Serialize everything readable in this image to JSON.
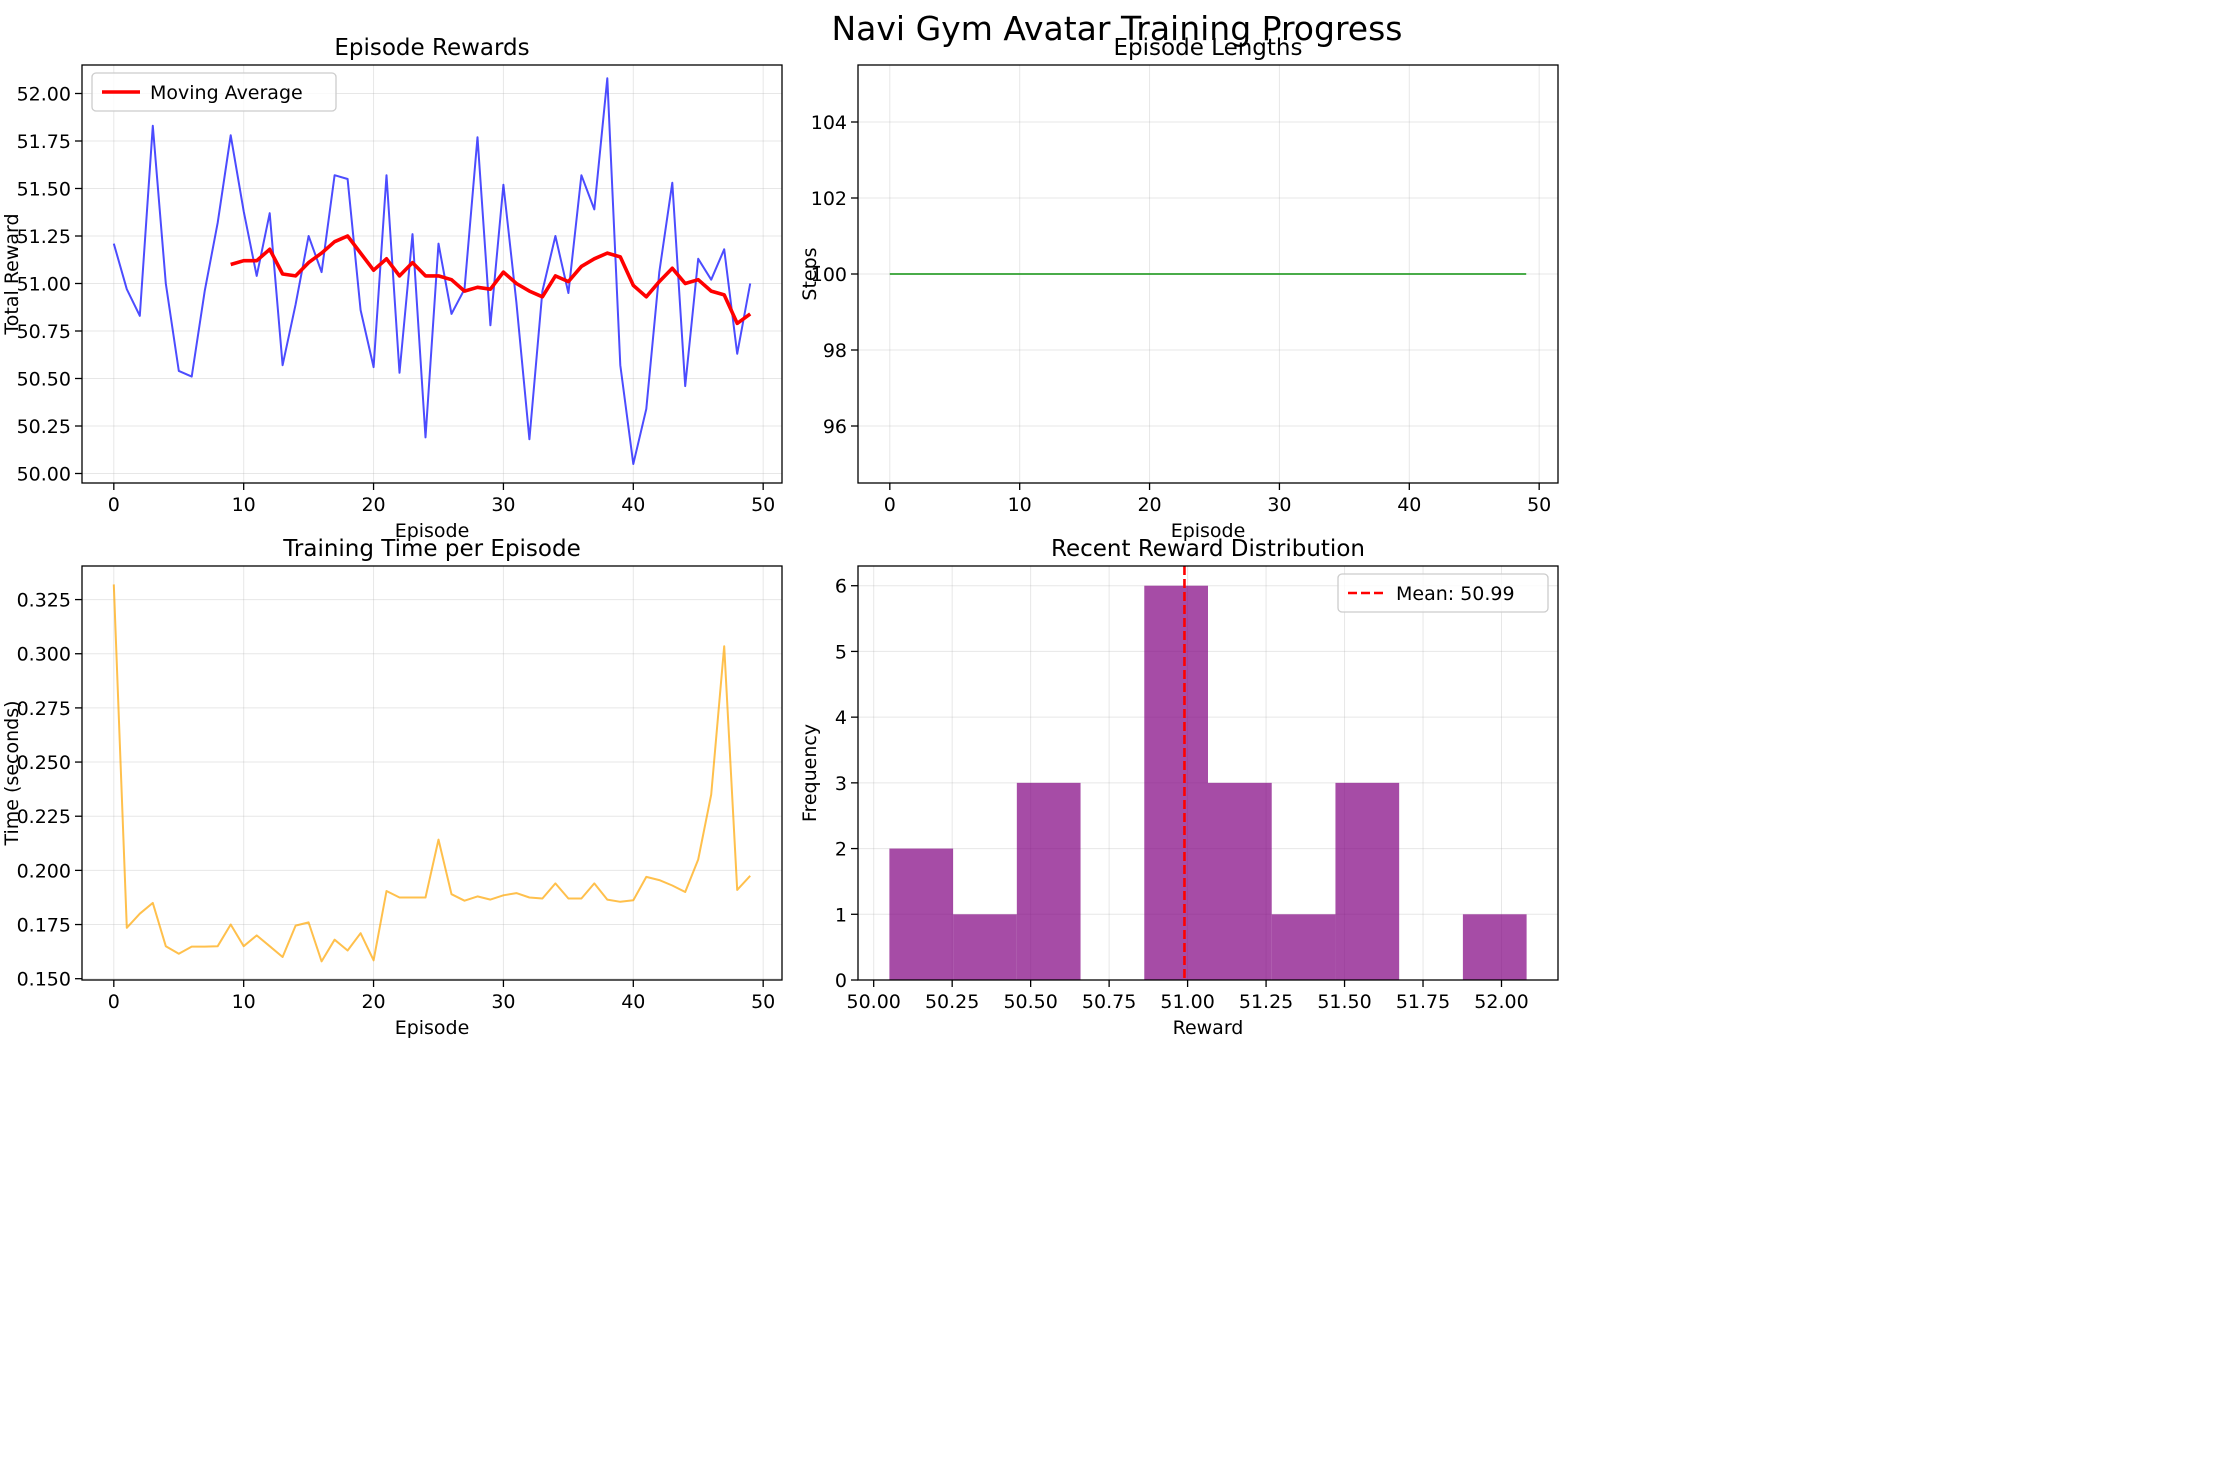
{
  "suptitle": "Navi Gym Avatar Training Progress",
  "chart_data": [
    {
      "type": "line",
      "title": "Episode Rewards",
      "xlabel": "Episode",
      "ylabel": "Total Reward",
      "xlim": [
        -2.45,
        51.45
      ],
      "ylim": [
        49.95,
        52.15
      ],
      "xticks": [
        0,
        10,
        20,
        30,
        40,
        50
      ],
      "yticks": [
        50.0,
        50.25,
        50.5,
        50.75,
        51.0,
        51.25,
        51.5,
        51.75,
        52.0
      ],
      "grid": true,
      "legend": "upper-left",
      "series": [
        {
          "color": "#0000ff",
          "x": [
            0,
            1,
            2,
            3,
            4,
            5,
            6,
            7,
            8,
            9,
            10,
            11,
            12,
            13,
            14,
            15,
            16,
            17,
            18,
            19,
            20,
            21,
            22,
            23,
            24,
            25,
            26,
            27,
            28,
            29,
            30,
            31,
            32,
            33,
            34,
            35,
            36,
            37,
            38,
            39,
            40,
            41,
            42,
            43,
            44,
            45,
            46,
            47,
            48,
            49
          ],
          "y": [
            51.21,
            50.97,
            50.83,
            51.83,
            51.0,
            50.54,
            50.51,
            50.96,
            51.32,
            51.78,
            51.38,
            51.04,
            51.37,
            50.57,
            50.89,
            51.25,
            51.06,
            51.57,
            51.55,
            50.86,
            50.56,
            51.57,
            50.53,
            51.26,
            50.19,
            51.21,
            50.84,
            50.97,
            51.77,
            50.78,
            51.52,
            50.9,
            50.18,
            50.96,
            51.25,
            50.95,
            51.57,
            51.39,
            52.08,
            50.57,
            50.05,
            50.34,
            51.06,
            51.53,
            50.46,
            51.13,
            51.02,
            51.18,
            50.63,
            51.0
          ]
        },
        {
          "name": "Moving Average",
          "color": "#ff0000",
          "x": [
            9,
            10,
            11,
            12,
            13,
            14,
            15,
            16,
            17,
            18,
            19,
            20,
            21,
            22,
            23,
            24,
            25,
            26,
            27,
            28,
            29,
            30,
            31,
            32,
            33,
            34,
            35,
            36,
            37,
            38,
            39,
            40,
            41,
            42,
            43,
            44,
            45,
            46,
            47,
            48,
            49
          ],
          "y": [
            51.1,
            51.12,
            51.12,
            51.18,
            51.05,
            51.04,
            51.11,
            51.16,
            51.22,
            51.25,
            51.16,
            51.07,
            51.13,
            51.04,
            51.11,
            51.04,
            51.04,
            51.02,
            50.96,
            50.98,
            50.97,
            51.06,
            51.0,
            50.96,
            50.93,
            51.04,
            51.01,
            51.09,
            51.13,
            51.16,
            51.14,
            50.99,
            50.93,
            51.01,
            51.08,
            51.0,
            51.02,
            50.96,
            50.94,
            50.79,
            50.84
          ]
        }
      ]
    },
    {
      "type": "line",
      "title": "Episode Lengths",
      "xlabel": "Episode",
      "ylabel": "Steps",
      "xlim": [
        -2.45,
        51.45
      ],
      "ylim": [
        94.5,
        105.5
      ],
      "xticks": [
        0,
        10,
        20,
        30,
        40,
        50
      ],
      "yticks": [
        96,
        98,
        100,
        102,
        104
      ],
      "grid": true,
      "series": [
        {
          "color": "#2ca02c",
          "x": [
            0,
            1,
            2,
            3,
            4,
            5,
            6,
            7,
            8,
            9,
            10,
            11,
            12,
            13,
            14,
            15,
            16,
            17,
            18,
            19,
            20,
            21,
            22,
            23,
            24,
            25,
            26,
            27,
            28,
            29,
            30,
            31,
            32,
            33,
            34,
            35,
            36,
            37,
            38,
            39,
            40,
            41,
            42,
            43,
            44,
            45,
            46,
            47,
            48,
            49
          ],
          "y": [
            100,
            100,
            100,
            100,
            100,
            100,
            100,
            100,
            100,
            100,
            100,
            100,
            100,
            100,
            100,
            100,
            100,
            100,
            100,
            100,
            100,
            100,
            100,
            100,
            100,
            100,
            100,
            100,
            100,
            100,
            100,
            100,
            100,
            100,
            100,
            100,
            100,
            100,
            100,
            100,
            100,
            100,
            100,
            100,
            100,
            100,
            100,
            100,
            100,
            100
          ]
        }
      ]
    },
    {
      "type": "line",
      "title": "Training Time per Episode",
      "xlabel": "Episode",
      "ylabel": "Time (seconds)",
      "xlim": [
        -2.45,
        51.45
      ],
      "ylim": [
        0.1494,
        0.3405
      ],
      "xticks": [
        0,
        10,
        20,
        30,
        40,
        50
      ],
      "yticks": [
        0.15,
        0.175,
        0.2,
        0.225,
        0.25,
        0.275,
        0.3,
        0.325
      ],
      "grid": true,
      "series": [
        {
          "color": "#ffa500",
          "x": [
            0,
            1,
            2,
            3,
            4,
            5,
            6,
            7,
            8,
            9,
            10,
            11,
            12,
            13,
            14,
            15,
            16,
            17,
            18,
            19,
            20,
            21,
            22,
            23,
            24,
            25,
            26,
            27,
            28,
            29,
            30,
            31,
            32,
            33,
            34,
            35,
            36,
            37,
            38,
            39,
            40,
            41,
            42,
            43,
            44,
            45,
            46,
            47,
            48,
            49
          ],
          "y": [
            0.332,
            0.1735,
            0.18,
            0.185,
            0.165,
            0.1615,
            0.1648,
            0.1648,
            0.165,
            0.175,
            0.165,
            0.17,
            0.165,
            0.16,
            0.1745,
            0.176,
            0.158,
            0.168,
            0.163,
            0.171,
            0.1585,
            0.1905,
            0.1875,
            0.1875,
            0.1875,
            0.2142,
            0.189,
            0.186,
            0.188,
            0.1865,
            0.1885,
            0.1895,
            0.1875,
            0.187,
            0.194,
            0.187,
            0.187,
            0.194,
            0.1865,
            0.1855,
            0.1862,
            0.197,
            0.1955,
            0.193,
            0.19,
            0.205,
            0.235,
            0.3035,
            0.191,
            0.1975
          ]
        }
      ]
    },
    {
      "type": "bar",
      "title": "Recent Reward Distribution",
      "xlabel": "Reward",
      "ylabel": "Frequency",
      "xlim": [
        49.95,
        52.18
      ],
      "ylim": [
        0,
        6.3
      ],
      "xticks": [
        50.0,
        50.25,
        50.5,
        50.75,
        51.0,
        51.25,
        51.5,
        51.75,
        52.0
      ],
      "yticks": [
        0,
        1,
        2,
        3,
        4,
        5,
        6
      ],
      "grid": true,
      "legend": "upper-right",
      "bar_color": "#800080",
      "bins": [
        {
          "left": 50.05,
          "right": 50.253,
          "count": 2
        },
        {
          "left": 50.253,
          "right": 50.456,
          "count": 1
        },
        {
          "left": 50.456,
          "right": 50.659,
          "count": 3
        },
        {
          "left": 50.659,
          "right": 50.862,
          "count": 0
        },
        {
          "left": 50.862,
          "right": 51.065,
          "count": 6
        },
        {
          "left": 51.065,
          "right": 51.268,
          "count": 3
        },
        {
          "left": 51.268,
          "right": 51.471,
          "count": 1
        },
        {
          "left": 51.471,
          "right": 51.674,
          "count": 3
        },
        {
          "left": 51.674,
          "right": 51.877,
          "count": 0
        },
        {
          "left": 51.877,
          "right": 52.08,
          "count": 1
        }
      ],
      "mean": {
        "value": 50.99,
        "label": "Mean: 50.99",
        "color": "#ff0000"
      }
    }
  ]
}
